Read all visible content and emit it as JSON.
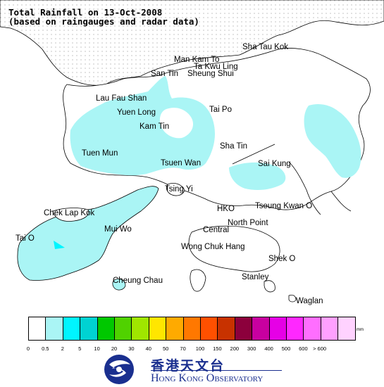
{
  "title": {
    "line1": "Total Rainfall on 13-Oct-2008",
    "line2": "(based on raingauges and radar data)"
  },
  "places": [
    {
      "key": "sha-tau-kok",
      "name": "Sha Tau Kok"
    },
    {
      "key": "man-kam-to",
      "name": "Man Kam To"
    },
    {
      "key": "ta-kwu-ling",
      "name": "Ta Kwu Ling"
    },
    {
      "key": "san-tin",
      "name": "San Tin"
    },
    {
      "key": "sheung-shui",
      "name": "Sheung Shui"
    },
    {
      "key": "lau-fau-shan",
      "name": "Lau Fau Shan"
    },
    {
      "key": "yuen-long",
      "name": "Yuen Long"
    },
    {
      "key": "tai-po",
      "name": "Tai Po"
    },
    {
      "key": "kam-tin",
      "name": "Kam Tin"
    },
    {
      "key": "sha-tin",
      "name": "Sha Tin"
    },
    {
      "key": "tuen-mun",
      "name": "Tuen Mun"
    },
    {
      "key": "tsuen-wan",
      "name": "Tsuen Wan"
    },
    {
      "key": "sai-kung",
      "name": "Sai Kung"
    },
    {
      "key": "tsing-yi",
      "name": "Tsing Yi"
    },
    {
      "key": "chek-lap-kok",
      "name": "Chek Lap Kok"
    },
    {
      "key": "hko",
      "name": "HKO"
    },
    {
      "key": "tseung-kwan-o",
      "name": "Tseung Kwan O"
    },
    {
      "key": "mui-wo",
      "name": "Mui Wo"
    },
    {
      "key": "north-point",
      "name": "North Point"
    },
    {
      "key": "central",
      "name": "Central"
    },
    {
      "key": "tai-o",
      "name": "Tai O"
    },
    {
      "key": "wong-chuk-hang",
      "name": "Wong Chuk Hang"
    },
    {
      "key": "shek-o",
      "name": "Shek O"
    },
    {
      "key": "stanley",
      "name": "Stanley"
    },
    {
      "key": "cheung-chau",
      "name": "Cheung Chau"
    },
    {
      "key": "waglan",
      "name": "Waglan"
    }
  ],
  "legend": {
    "unit": "mm",
    "colors": [
      "#ffffff",
      "#aaf5f5",
      "#00f5ff",
      "#00d2d2",
      "#00c800",
      "#50d200",
      "#a0e600",
      "#ffe600",
      "#ffaa00",
      "#ff7800",
      "#ff5000",
      "#c83200",
      "#8c003c",
      "#c800a0",
      "#e600e6",
      "#ff28ff",
      "#ff6eff",
      "#ffa0ff",
      "#ffd2ff"
    ],
    "ticks": [
      "0",
      "0.5",
      "2",
      "5",
      "10",
      "20",
      "30",
      "40",
      "50",
      "70",
      "100",
      "150",
      "200",
      "300",
      "400",
      "500",
      "600",
      "> 600"
    ]
  },
  "rainfall_colors": {
    "light_rain": "#aaf5f5",
    "medium_rain": "#00f5ff"
  },
  "logo": {
    "cn": "香港天文台",
    "en": "Hong Kong Observatory"
  }
}
